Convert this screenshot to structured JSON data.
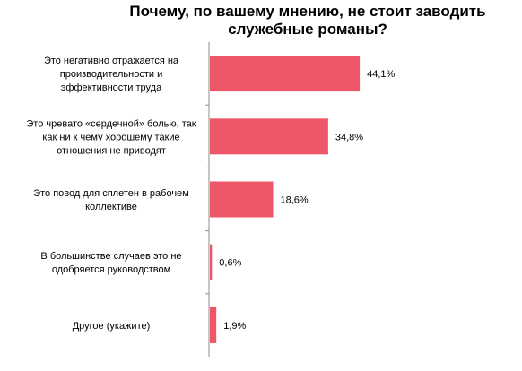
{
  "chart_data": {
    "type": "bar",
    "orientation": "horizontal",
    "title": "Почему, по вашему мнению, не стоит заводить служебные романы?",
    "title_lines": [
      "Почему, по вашему мнению, не стоит заводить",
      "служебные романы?"
    ],
    "categories": [
      [
        "Это негативно отражается на",
        "производительности и",
        "эффективности труда"
      ],
      [
        "Это чревато «сердечной» болью, так",
        "как ни к чему хорошему такие",
        "отношения не приводят"
      ],
      [
        "Это повод для сплетен в рабочем",
        "коллективе"
      ],
      [
        "В большинстве случаев это не",
        "одобряется руководством"
      ],
      [
        "Другое (укажите)"
      ]
    ],
    "values": [
      44.1,
      34.8,
      18.6,
      0.6,
      1.9
    ],
    "value_labels": [
      "44,1%",
      "34,8%",
      "18,6%",
      "0,6%",
      "1,9%"
    ],
    "unit": "%",
    "xlim": [
      0,
      100
    ],
    "grid": false,
    "legend": "none",
    "bar_color": "#ee5767",
    "axis_color": "#8c8c8c"
  }
}
